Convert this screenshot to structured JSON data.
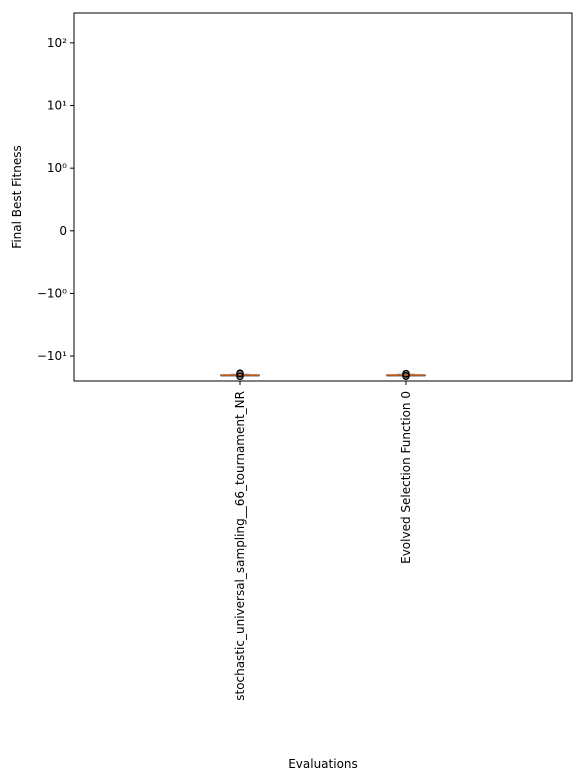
{
  "chart_data": {
    "type": "box",
    "title": "",
    "xlabel": "Evaluations",
    "ylabel": "Final Best Fitness",
    "yscale": "symlog",
    "ylim": [
      -25,
      300
    ],
    "grid": false,
    "legend": "none",
    "yticks": [
      {
        "value": 100,
        "label": "10²"
      },
      {
        "value": 10,
        "label": "10¹"
      },
      {
        "value": 1,
        "label": "10⁰"
      },
      {
        "value": 0,
        "label": "0"
      },
      {
        "value": -1,
        "label": "−10⁰"
      },
      {
        "value": -10,
        "label": "−10¹"
      }
    ],
    "categories": [
      "stochastic_universal_sampling__66_tournament_NR",
      "Evolved Selection Function 0"
    ],
    "boxes": [
      {
        "q1": -20.1,
        "median": -20.0,
        "q3": -19.9,
        "whisker_low": -20.4,
        "whisker_high": -19.6,
        "outliers": [
          -18.7,
          -18.9,
          -19.1,
          -19.3,
          -20.7,
          -20.9,
          -21.1
        ]
      },
      {
        "q1": -20.1,
        "median": -20.0,
        "q3": -19.9,
        "whisker_low": -20.4,
        "whisker_high": -19.6,
        "outliers": [
          -19.0,
          -19.2,
          -19.4,
          -20.6,
          -20.8,
          -21.0
        ]
      }
    ],
    "colors": {
      "box": "#000000",
      "median": "#e07b39",
      "outlier": "#000000"
    }
  }
}
